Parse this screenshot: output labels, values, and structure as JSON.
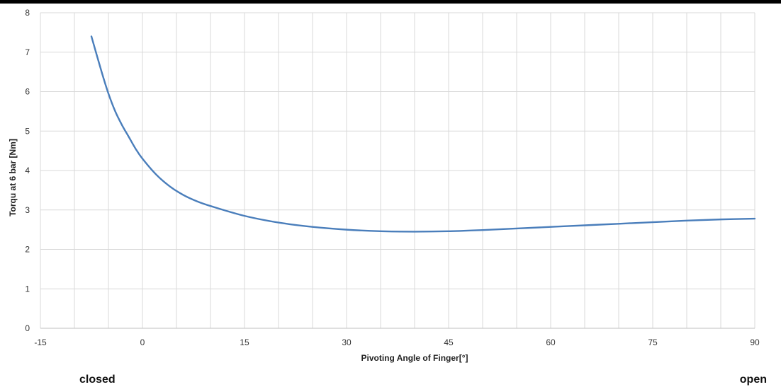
{
  "chart_data": {
    "type": "line",
    "title": "",
    "xlabel": "Pivoting Angle of Finger[°]",
    "ylabel": "Torqu at 6 bar  [Nm]",
    "xlim": [
      -15,
      90
    ],
    "ylim": [
      0,
      8
    ],
    "x_ticks": [
      -15,
      0,
      15,
      30,
      45,
      60,
      75,
      90
    ],
    "y_ticks": [
      0,
      1,
      2,
      3,
      4,
      5,
      6,
      7,
      8
    ],
    "x_grid_step": 5,
    "grid": true,
    "legend": "none",
    "series": [
      {
        "color": "#4a7ebb",
        "x": [
          -7.5,
          -6,
          -5,
          -4,
          -3,
          -2,
          -1,
          0,
          2,
          4,
          6,
          8,
          10,
          15,
          20,
          25,
          30,
          35,
          40,
          45,
          50,
          55,
          60,
          65,
          70,
          75,
          80,
          85,
          90
        ],
        "y": [
          7.4,
          6.5,
          5.95,
          5.5,
          5.15,
          4.85,
          4.55,
          4.3,
          3.9,
          3.6,
          3.38,
          3.22,
          3.1,
          2.85,
          2.68,
          2.57,
          2.5,
          2.46,
          2.45,
          2.46,
          2.49,
          2.53,
          2.57,
          2.61,
          2.65,
          2.69,
          2.73,
          2.76,
          2.78
        ]
      }
    ]
  },
  "annotations": {
    "closed": "closed",
    "open": "open"
  }
}
